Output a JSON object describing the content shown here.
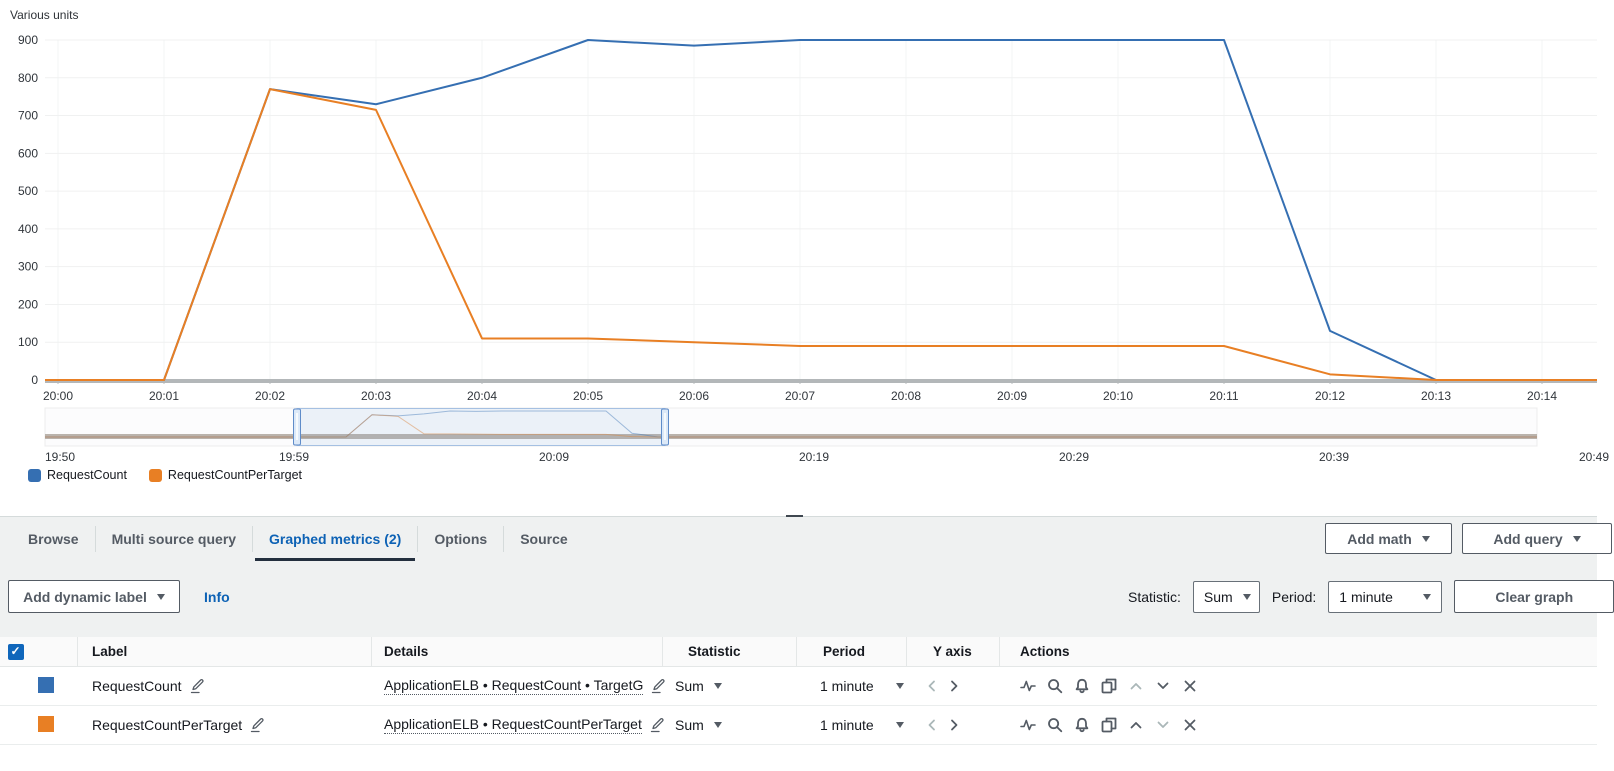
{
  "chart_data": {
    "type": "line",
    "title": "Various units",
    "x": [
      "20:00",
      "20:01",
      "20:02",
      "20:03",
      "20:04",
      "20:05",
      "20:06",
      "20:07",
      "20:08",
      "20:09",
      "20:10",
      "20:11",
      "20:12",
      "20:13",
      "20:14"
    ],
    "series": [
      {
        "name": "RequestCount",
        "color": "#356fb2",
        "values": [
          0,
          0,
          770,
          730,
          800,
          900,
          885,
          900,
          900,
          900,
          900,
          900,
          130,
          0,
          0
        ]
      },
      {
        "name": "RequestCountPerTarget",
        "color": "#e87f24",
        "values": [
          0,
          0,
          770,
          715,
          110,
          110,
          100,
          90,
          90,
          90,
          90,
          90,
          15,
          0,
          0
        ]
      }
    ],
    "xlabel": "",
    "ylabel": "Various units",
    "ylim": [
      0,
      900
    ],
    "yticks": [
      0,
      100,
      200,
      300,
      400,
      500,
      600,
      700,
      800,
      900
    ],
    "grid": true,
    "legend_position": "bottom-left",
    "timeline": {
      "labels": [
        "19:50",
        "19:59",
        "20:09",
        "20:19",
        "20:29",
        "20:39",
        "20:49"
      ],
      "window": {
        "start": "19:59",
        "end": "20:14"
      }
    }
  },
  "colors": {
    "accent_blue": "#0d62b5",
    "checkbox_blue": "#0f66bb",
    "series_blue": "#356fb2",
    "series_orange": "#e87f24"
  },
  "tabs": {
    "items": [
      {
        "label": "Browse",
        "active": false
      },
      {
        "label": "Multi source query",
        "active": false
      },
      {
        "label": "Graphed metrics (2)",
        "active": true
      },
      {
        "label": "Options",
        "active": false
      },
      {
        "label": "Source",
        "active": false
      }
    ]
  },
  "header_buttons": {
    "add_math": "Add math",
    "add_query": "Add query"
  },
  "toolbar": {
    "add_dynamic_label": "Add dynamic label",
    "info": "Info",
    "statistic_label": "Statistic:",
    "statistic_value": "Sum",
    "period_label": "Period:",
    "period_value": "1 minute",
    "clear_graph": "Clear graph"
  },
  "table": {
    "columns": [
      "Label",
      "Details",
      "Statistic",
      "Period",
      "Y axis",
      "Actions"
    ],
    "action_icons": [
      "view-metric",
      "zoom",
      "create-alarm",
      "duplicate",
      "move-up",
      "move-down",
      "remove"
    ],
    "rows": [
      {
        "checked": true,
        "label": "RequestCount",
        "details": "ApplicationELB • RequestCount • TargetG",
        "statistic": "Sum",
        "period": "1 minute"
      },
      {
        "checked": true,
        "label": "RequestCountPerTarget",
        "details": "ApplicationELB • RequestCountPerTarget",
        "statistic": "Sum",
        "period": "1 minute"
      }
    ]
  }
}
